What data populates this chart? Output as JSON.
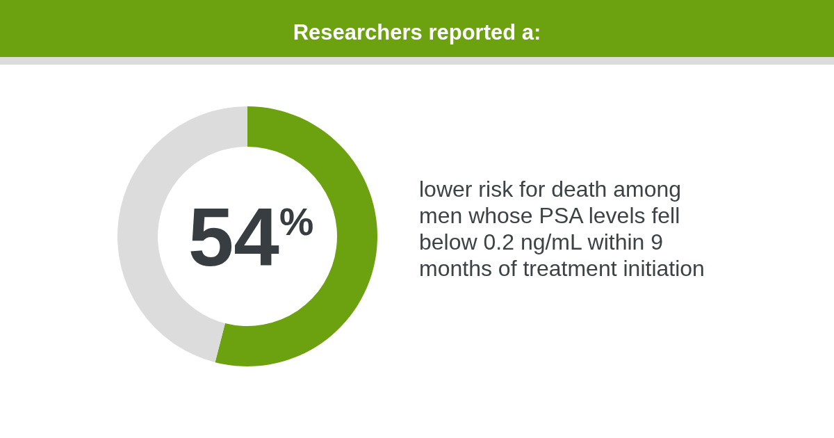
{
  "chart_data": {
    "type": "donut",
    "title": "Researchers reported a:",
    "categories": [
      null,
      null
    ],
    "values": [
      54,
      46
    ],
    "colors": [
      "#6ca10f",
      "#dcdcdc"
    ],
    "value_labels": [
      "54$^{%}$",
      null
    ],
    "annotations": [
      "lower risk for death among\nmen whose PSA levels fell\nbelow 0.2 ng/mL within 9\nmonths of treatment initiation"
    ]
  }
}
